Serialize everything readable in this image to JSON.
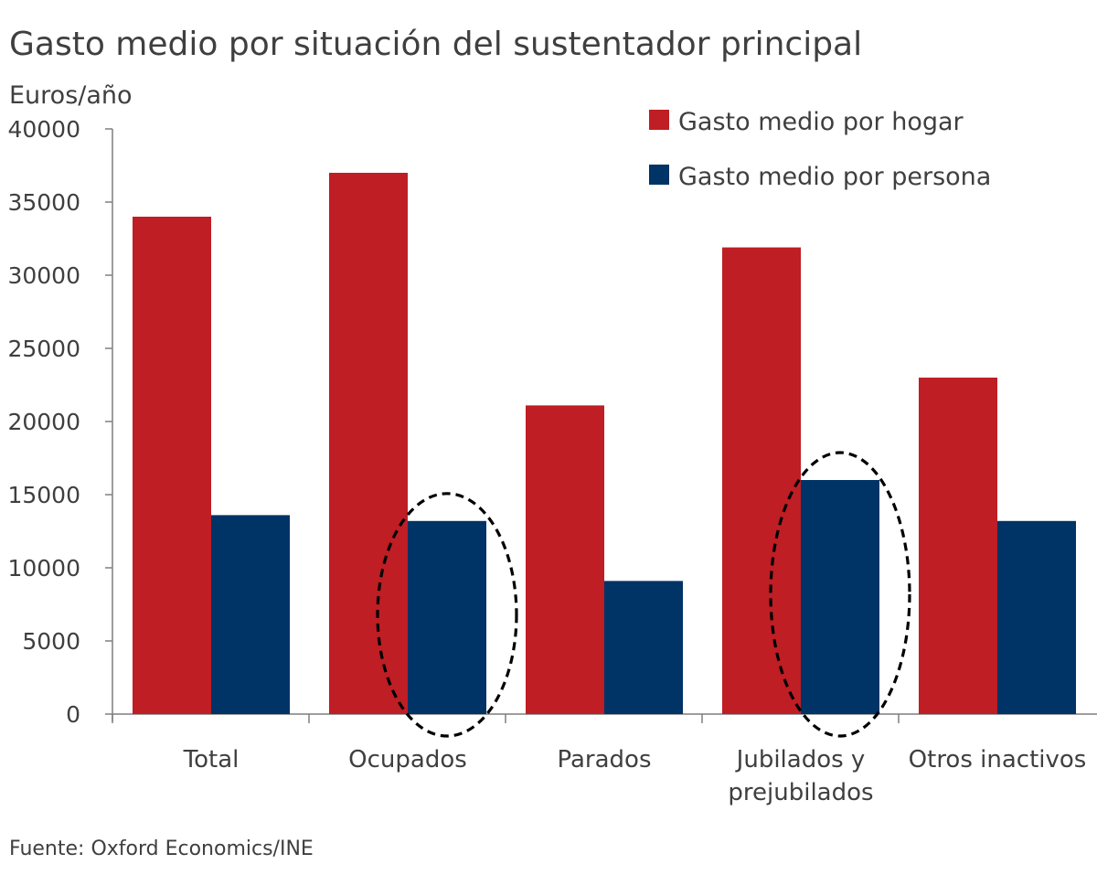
{
  "chart_data": {
    "type": "bar",
    "title": "Gasto medio por situación del sustentador principal",
    "ylabel": "Euros/año",
    "xlabel": "",
    "categories": [
      [
        "Total"
      ],
      [
        "Ocupados"
      ],
      [
        "Parados"
      ],
      [
        "Jubilados y",
        "prejubilados"
      ],
      [
        "Otros inactivos"
      ]
    ],
    "series": [
      {
        "name": "Gasto medio por hogar",
        "color": "#be1e24",
        "values": [
          34000,
          37000,
          21100,
          31900,
          23000
        ]
      },
      {
        "name": "Gasto medio por persona",
        "color": "#003366",
        "values": [
          13600,
          13200,
          9100,
          16000,
          13200
        ]
      }
    ],
    "ylim": [
      0,
      40000
    ],
    "yticks": [
      0,
      5000,
      10000,
      15000,
      20000,
      25000,
      30000,
      35000,
      40000
    ],
    "grid": false,
    "legend_position": "top-right",
    "highlighted": [
      {
        "category_index": 1,
        "series_index": 1,
        "marker": "dashed-ellipse"
      },
      {
        "category_index": 3,
        "series_index": 1,
        "marker": "dashed-ellipse"
      }
    ],
    "source": "Fuente: Oxford Economics/INE"
  }
}
